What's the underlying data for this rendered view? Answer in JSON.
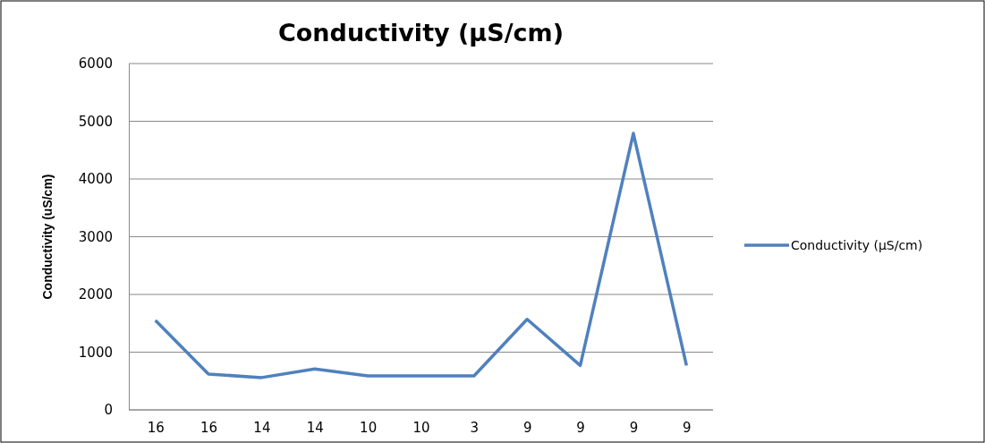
{
  "chart_data": {
    "type": "line",
    "title": "Conductivity (µS/cm)",
    "ylabel": "Conductivity (uS/cm)",
    "categories": [
      "16",
      "16",
      "14",
      "14",
      "10",
      "10",
      "3",
      "9",
      "9",
      "9",
      "9"
    ],
    "series": [
      {
        "name": "Conductivity (µS/cm)",
        "color": "#4f81bd",
        "values": [
          1550,
          620,
          560,
          710,
          590,
          590,
          590,
          1570,
          770,
          4790,
          770
        ]
      }
    ],
    "ylim": [
      0,
      6000
    ],
    "yticks": [
      0,
      1000,
      2000,
      3000,
      4000,
      5000,
      6000
    ],
    "grid": "y",
    "legend": "right",
    "marker": "none",
    "line_style": "solid"
  }
}
